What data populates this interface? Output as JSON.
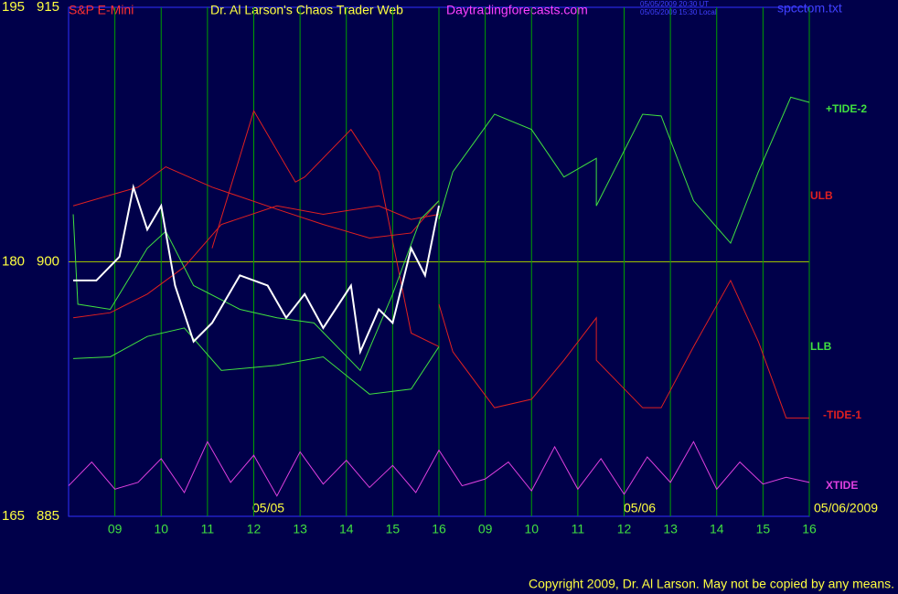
{
  "chart_data": {
    "type": "line",
    "title": "S&P E-Mini",
    "subtitle": "Dr. Al Larson's Chaos Trader Web",
    "site": "Daytradingforecasts.com",
    "timestamps": [
      "05/05/2009 20:30 UT",
      "05/05/2009 15:30 Local"
    ],
    "file": "spcctom.txt",
    "dates": [
      "05/05",
      "05/06",
      "05/06/2009"
    ],
    "copyright": "Copyright 2009, Dr. Al Larson. May not be copied by any means.",
    "ylim": [
      885,
      915
    ],
    "yticks": [
      885,
      900,
      915
    ],
    "y2lim": [
      165,
      195
    ],
    "y2ticks": [
      165,
      180,
      195
    ],
    "xlim": [
      0,
      16
    ],
    "xticks": [
      {
        "value": 1,
        "label": "09"
      },
      {
        "value": 2,
        "label": "10"
      },
      {
        "value": 3,
        "label": "11"
      },
      {
        "value": 4,
        "label": "12"
      },
      {
        "value": 5,
        "label": "13"
      },
      {
        "value": 6,
        "label": "14"
      },
      {
        "value": 7,
        "label": "15"
      },
      {
        "value": 8,
        "label": "16"
      },
      {
        "value": 9,
        "label": "09"
      },
      {
        "value": 10,
        "label": "10"
      },
      {
        "value": 11,
        "label": "11"
      },
      {
        "value": 12,
        "label": "12"
      },
      {
        "value": 13,
        "label": "13"
      },
      {
        "value": 14,
        "label": "14"
      },
      {
        "value": 15,
        "label": "15"
      },
      {
        "value": 16,
        "label": "16"
      }
    ],
    "grid": true,
    "series": [
      {
        "name": "+TIDE-2",
        "color": "#40e040",
        "x": [
          8.0,
          8.3,
          9.2,
          10.0,
          10.7,
          11.4,
          11.4,
          12.4,
          12.8,
          13.5,
          14.3,
          14.9,
          15.6,
          16.0
        ],
        "values": [
          902.5,
          905.3,
          908.7,
          907.8,
          905.0,
          906.1,
          903.3,
          908.7,
          908.6,
          903.6,
          901.1,
          905.3,
          909.7,
          909.4
        ]
      },
      {
        "name": "-TIDE-1",
        "color": "#e02020",
        "x": [
          8.0,
          8.3,
          9.2,
          10.0,
          10.7,
          11.4,
          11.4,
          12.4,
          12.8,
          13.5,
          14.3,
          14.9,
          15.5,
          16.0
        ],
        "values": [
          897.5,
          894.7,
          891.4,
          891.9,
          894.2,
          896.7,
          894.2,
          891.4,
          891.4,
          895.0,
          898.9,
          895.3,
          890.8,
          890.8
        ]
      },
      {
        "name": "XTIDE",
        "color": "#e040e0",
        "x": [
          0,
          0.5,
          1,
          1.5,
          2,
          2.5,
          3,
          3.5,
          4,
          4.5,
          5,
          5.5,
          6,
          6.5,
          7,
          7.5,
          8,
          8.5,
          9,
          9.5,
          10,
          10.5,
          11,
          11.5,
          12,
          12.5,
          13,
          13.5,
          14,
          14.5,
          15,
          15.5,
          16
        ],
        "values": [
          886.8,
          888.2,
          886.6,
          887.0,
          888.4,
          886.4,
          889.4,
          887.0,
          888.6,
          886.2,
          888.8,
          886.9,
          888.3,
          886.7,
          888.0,
          886.4,
          888.9,
          886.8,
          887.2,
          888.2,
          886.5,
          889.1,
          886.6,
          888.4,
          886.3,
          888.5,
          887.0,
          889.4,
          886.6,
          888.2,
          886.9,
          887.3,
          887.0
        ]
      },
      {
        "name": "ULB",
        "color": "#e02020",
        "x": [
          0.1,
          1.5,
          2.1,
          3.1,
          4.5,
          5.5,
          6.5,
          7.4,
          8.0
        ],
        "values": [
          903.3,
          904.4,
          905.6,
          904.4,
          903.1,
          902.2,
          901.4,
          901.7,
          903.6
        ]
      },
      {
        "name": "LLB",
        "color": "#40e040",
        "x": [
          0.1,
          0.9,
          1.7,
          2.5,
          3.3,
          4.5,
          5.5,
          6.5,
          7.4,
          8.0
        ],
        "values": [
          894.3,
          894.4,
          895.6,
          896.1,
          893.6,
          893.9,
          894.4,
          892.2,
          892.5,
          895.0
        ]
      },
      {
        "color": "#e02020",
        "x": [
          0.1,
          0.9,
          1.7,
          2.5,
          3.3,
          4.5,
          5.5,
          6.7,
          7.4,
          8.0
        ],
        "values": [
          896.7,
          897.0,
          898.1,
          899.7,
          902.2,
          903.3,
          902.8,
          903.3,
          902.5,
          902.8
        ]
      },
      {
        "color": "#e02020",
        "x": [
          3.1,
          4.0,
          4.9,
          5.1,
          6.1,
          6.7,
          7.4,
          8.0
        ],
        "values": [
          900.8,
          908.9,
          904.7,
          905.0,
          907.8,
          905.3,
          895.8,
          895.0
        ]
      },
      {
        "color": "#40e040",
        "x": [
          0.1,
          0.2,
          0.9,
          1.7,
          2.1,
          2.7,
          3.7,
          4.5,
          5.3,
          6.3,
          7.0,
          7.6,
          8.0
        ],
        "values": [
          902.8,
          897.5,
          897.2,
          900.8,
          901.8,
          898.6,
          897.2,
          896.7,
          896.4,
          893.6,
          898.1,
          902.5,
          903.6
        ]
      },
      {
        "color": "#ffffff",
        "x": [
          0.1,
          0.6,
          1.1,
          1.4,
          1.7,
          2.0,
          2.3,
          2.7,
          3.1,
          3.7,
          4.3,
          4.7,
          5.1,
          5.5,
          6.1,
          6.3,
          6.7,
          7.0,
          7.4,
          7.7,
          8.0
        ],
        "values": [
          898.9,
          898.9,
          900.3,
          904.4,
          901.9,
          903.3,
          898.6,
          895.3,
          896.4,
          899.2,
          898.6,
          896.7,
          898.1,
          896.1,
          898.6,
          894.7,
          897.2,
          896.4,
          900.8,
          899.2,
          903.3
        ]
      }
    ]
  }
}
